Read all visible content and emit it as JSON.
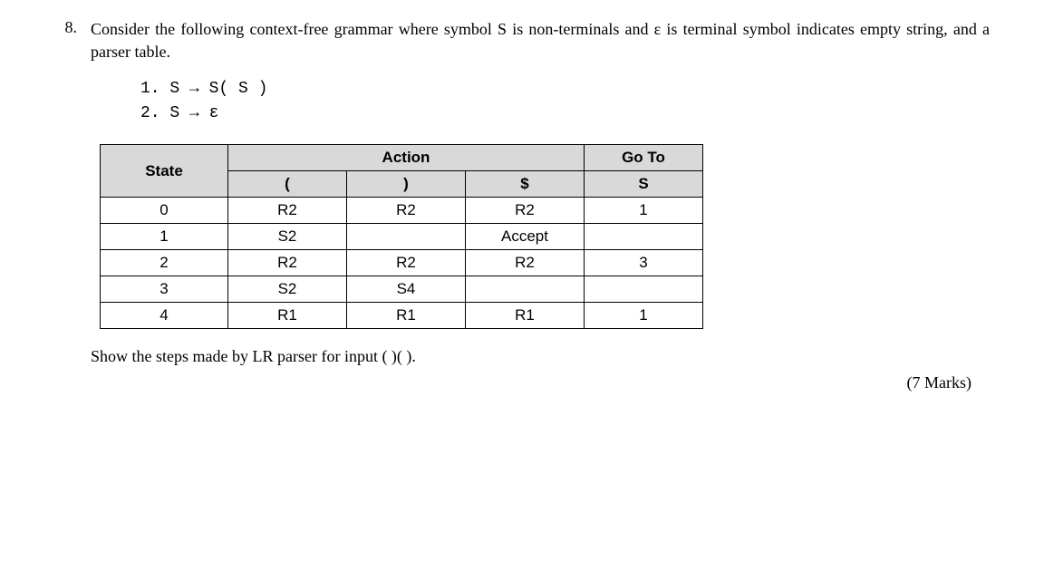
{
  "question": {
    "number": "8.",
    "intro": "Consider the following context-free grammar where symbol S is non-terminals and ε is terminal symbol indicates empty string, and a parser table.",
    "grammar": {
      "line1": "1. S → S( S )",
      "line2": "2. S → ε"
    },
    "table": {
      "headers": {
        "state": "State",
        "action": "Action",
        "goto": "Go To",
        "lparen": "(",
        "rparen": ")",
        "dollar": "$",
        "S": "S"
      },
      "rows": [
        {
          "state": "0",
          "lp": "R2",
          "rp": "R2",
          "dol": "R2",
          "s": "1"
        },
        {
          "state": "1",
          "lp": "S2",
          "rp": "",
          "dol": "Accept",
          "s": ""
        },
        {
          "state": "2",
          "lp": "R2",
          "rp": "R2",
          "dol": "R2",
          "s": "3"
        },
        {
          "state": "3",
          "lp": "S2",
          "rp": "S4",
          "dol": "",
          "s": ""
        },
        {
          "state": "4",
          "lp": "R1",
          "rp": "R1",
          "dol": "R1",
          "s": "1"
        }
      ]
    },
    "showSteps": "Show the steps made by LR parser for input ( )( ).",
    "marks": "(7 Marks)"
  }
}
